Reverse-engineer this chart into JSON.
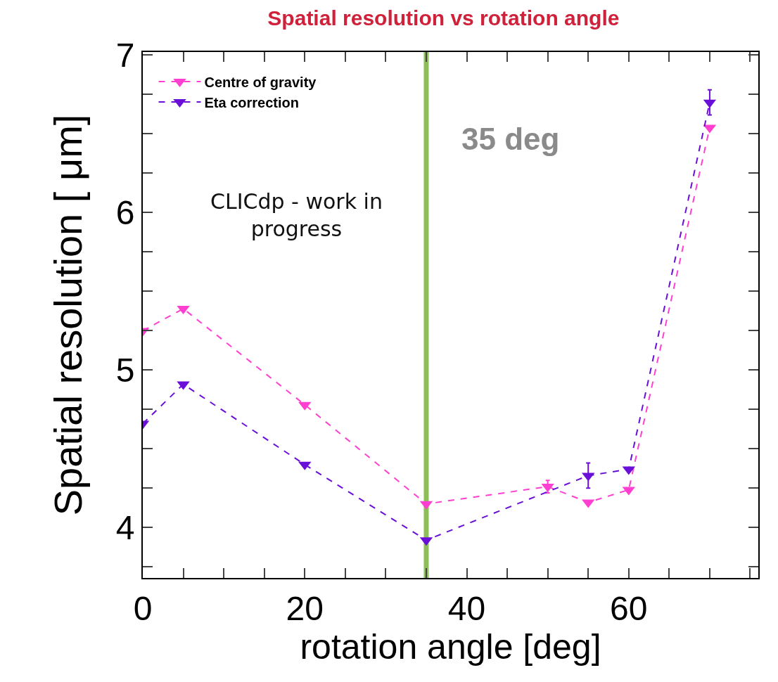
{
  "chart_data": {
    "type": "line",
    "title": "Spatial resolution vs rotation angle",
    "xlabel": "rotation angle [deg]",
    "ylabel": "Spatial resolution [ μm]",
    "series": [
      {
        "name": "Centre of gravity",
        "color": "#ff3fd0",
        "x": [
          0,
          5,
          20,
          35,
          50,
          55,
          60,
          70
        ],
        "values": [
          5.25,
          5.39,
          4.78,
          4.15,
          4.26,
          4.16,
          4.24,
          6.54
        ],
        "errors": [
          null,
          null,
          null,
          null,
          0.04,
          null,
          null,
          null
        ]
      },
      {
        "name": "Eta correction",
        "color": "#6a0fd8",
        "x": [
          0,
          5,
          20,
          35,
          55,
          60,
          70
        ],
        "values": [
          4.66,
          4.91,
          4.4,
          3.92,
          4.33,
          4.37,
          6.7
        ],
        "errors": [
          null,
          null,
          null,
          null,
          0.08,
          null,
          0.08
        ]
      }
    ],
    "xlim": [
      0,
      76
    ],
    "ylim": [
      3.68,
      7.02
    ],
    "xticks": [
      0,
      {
        "value": 5,
        "label": null
      },
      {
        "value": 10,
        "label": null
      },
      {
        "value": 15,
        "label": null
      },
      20,
      {
        "value": 25,
        "label": null
      },
      {
        "value": 30,
        "label": null
      },
      {
        "value": 35,
        "label": null
      },
      40,
      {
        "value": 45,
        "label": null
      },
      {
        "value": 50,
        "label": null
      },
      {
        "value": 55,
        "label": null
      },
      60,
      {
        "value": 65,
        "label": null
      },
      {
        "value": 70,
        "label": null
      },
      {
        "value": 75,
        "label": null
      }
    ],
    "yticks": [
      {
        "value": 3.75,
        "label": null
      },
      4,
      {
        "value": 4.25,
        "label": null
      },
      {
        "value": 4.5,
        "label": null
      },
      {
        "value": 4.75,
        "label": null
      },
      5,
      {
        "value": 5.25,
        "label": null
      },
      {
        "value": 5.5,
        "label": null
      },
      {
        "value": 5.75,
        "label": null
      },
      6,
      {
        "value": 6.25,
        "label": null
      },
      {
        "value": 6.5,
        "label": null
      },
      {
        "value": 6.75,
        "label": null
      },
      7
    ],
    "ref_lines": [
      {
        "axis": "x",
        "value": 35,
        "color": "#8cbf5a"
      }
    ],
    "annotations": [
      "35 deg",
      "CLICdp - work in progress"
    ],
    "grid": false,
    "legend": "top left",
    "marker": "triangle",
    "line_style": "dashed"
  }
}
